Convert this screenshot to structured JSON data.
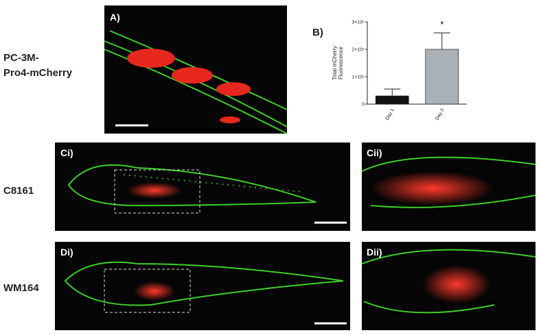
{
  "row_labels": [
    [
      "PC-3M-",
      "Pro4-mCherry"
    ],
    [
      "C8161"
    ],
    [
      "WM164"
    ]
  ],
  "panels": {
    "a": "A)",
    "b": "B)",
    "ci": "Ci)",
    "cii": "Cii)",
    "di": "Di)",
    "dii": "Dii)"
  },
  "chart_data": {
    "type": "bar",
    "y_label": [
      "Total mCherry",
      "Fluorescence"
    ],
    "categories": [
      "Day 1",
      "Day 3"
    ],
    "values": [
      30000,
      200000
    ],
    "errors": [
      25000,
      60000
    ],
    "colors": [
      "#111111",
      "#a9b1b6"
    ],
    "annotations": [
      "*"
    ],
    "ylim": [
      0,
      300000
    ],
    "yticks": [
      0,
      {
        "value": 100000,
        "label": "1×10⁵"
      },
      {
        "value": 200000,
        "label": "2×10⁵"
      },
      {
        "value": 300000,
        "label": "3×10⁵"
      }
    ]
  }
}
